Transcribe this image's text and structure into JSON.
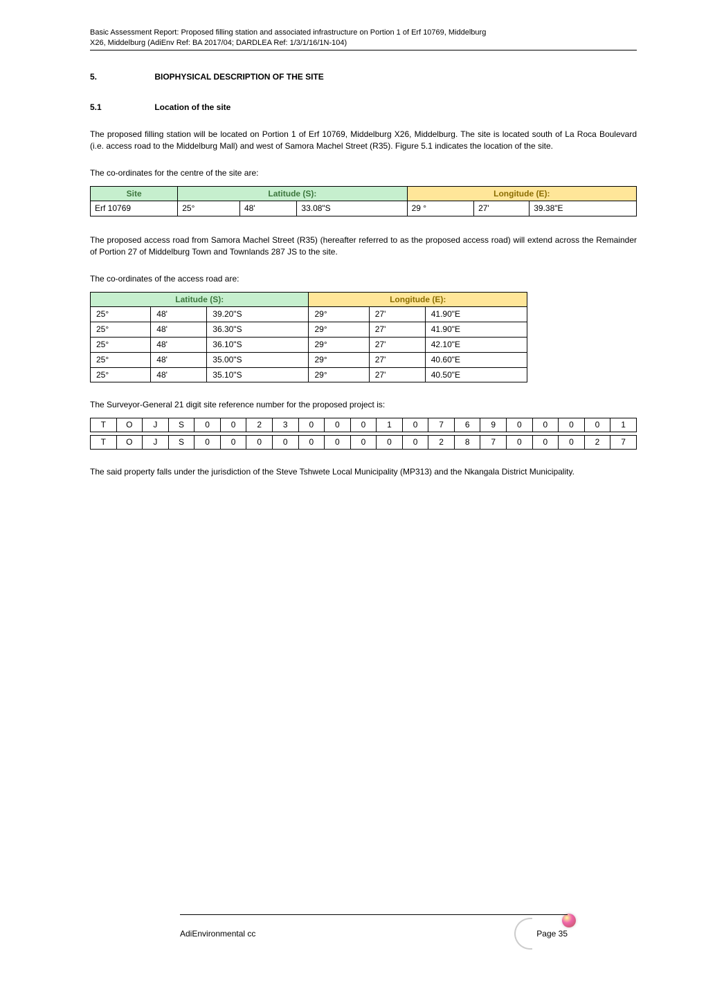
{
  "header": {
    "line1": "Basic Assessment Report: Proposed filling station and associated infrastructure on Portion 1 of Erf 10769, Middelburg",
    "line2": "X26, Middelburg (AdiEnv Ref: BA 2017/04; DARDLEA Ref: 1/3/1/16/1N-104)"
  },
  "section": {
    "num": "5.",
    "title": "BIOPHYSICAL DESCRIPTION OF THE SITE"
  },
  "sub": {
    "num": "5.1",
    "title": "Location of the site"
  },
  "para1": "The proposed filling station will be located on Portion 1 of Erf 10769, Middelburg X26, Middelburg. The site is located south of La Roca Boulevard (i.e. access road to the Middelburg Mall) and west of Samora Machel Street (R35). Figure 5.1 indicates the location of the site.",
  "para2": "The co-ordinates for the centre of the site are:",
  "siteTable": {
    "headers": {
      "c0": "Site",
      "c1": "Latitude (S):",
      "c2": "Longitude (E):"
    },
    "row": {
      "site": "Erf 10769",
      "latDeg": "25°",
      "latMin": "48'",
      "latSec": "33.08\"S",
      "lonDeg": "29 °",
      "lonMin": "27'",
      "lonSec": "39.38\"E"
    }
  },
  "para3": "The proposed access road from Samora Machel Street (R35) (hereafter referred to as the proposed access road) will extend across the Remainder of Portion 27 of Middelburg Town and Townlands 287 JS to the site.",
  "para4": "The co-ordinates of the access road are:",
  "coordTable": {
    "headers": {
      "lat": "Latitude (S):",
      "lon": "Longitude (E):"
    },
    "rows": [
      {
        "latDeg": "25°",
        "latMin": "48'",
        "latSec": "39.20\"S",
        "lonDeg": "29°",
        "lonMin": "27'",
        "lonSec": "41.90\"E"
      },
      {
        "latDeg": "25°",
        "latMin": "48'",
        "latSec": "36.30\"S",
        "lonDeg": "29°",
        "lonMin": "27'",
        "lonSec": "41.90\"E"
      },
      {
        "latDeg": "25°",
        "latMin": "48'",
        "latSec": "36.10\"S",
        "lonDeg": "29°",
        "lonMin": "27'",
        "lonSec": "42.10\"E"
      },
      {
        "latDeg": "25°",
        "latMin": "48'",
        "latSec": "35.00\"S",
        "lonDeg": "29°",
        "lonMin": "27'",
        "lonSec": "40.60\"E"
      },
      {
        "latDeg": "25°",
        "latMin": "48'",
        "latSec": "35.10\"S",
        "lonDeg": "29°",
        "lonMin": "27'",
        "lonSec": "40.50\"E"
      }
    ]
  },
  "para5": "The Surveyor-General 21 digit site reference number for the proposed project is:",
  "digits": {
    "row1": [
      "T",
      "O",
      "J",
      "S",
      "0",
      "0",
      "2",
      "3",
      "0",
      "0",
      "0",
      "1",
      "0",
      "7",
      "6",
      "9",
      "0",
      "0",
      "0",
      "0",
      "1"
    ],
    "row2": [
      "T",
      "O",
      "J",
      "S",
      "0",
      "0",
      "0",
      "0",
      "0",
      "0",
      "0",
      "0",
      "0",
      "2",
      "8",
      "7",
      "0",
      "0",
      "0",
      "2",
      "7"
    ]
  },
  "para6": "The said property falls under the jurisdiction of the Steve Tshwete Local Municipality (MP313) and the Nkangala District Municipality.",
  "footer": {
    "left": "AdiEnvironmental cc",
    "right": "Page 35"
  }
}
